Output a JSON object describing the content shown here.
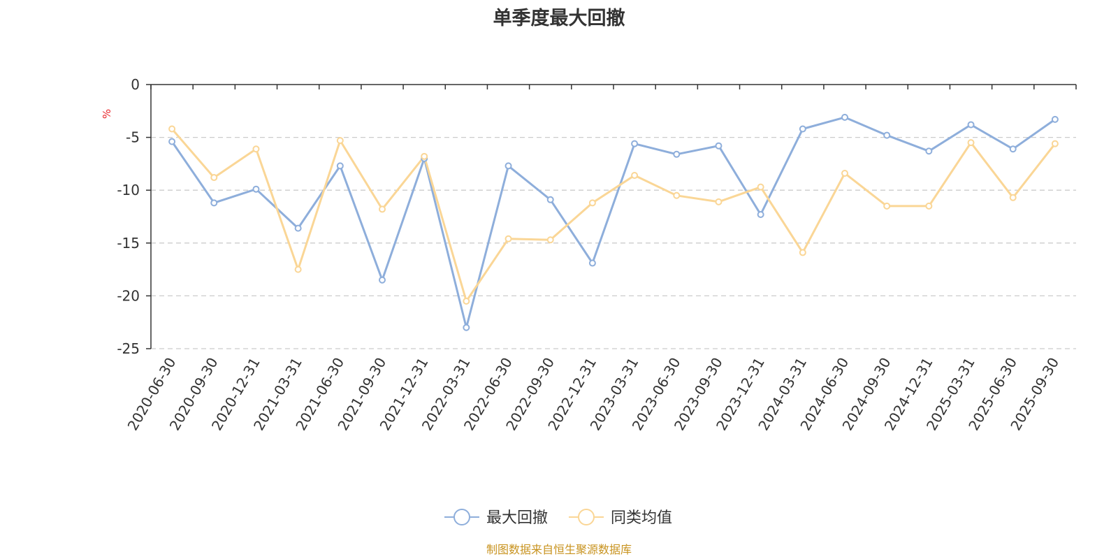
{
  "chart_data": {
    "type": "line",
    "title": "单季度最大回撤",
    "ylabel": "%",
    "xlabel": "",
    "ylim": [
      -25,
      0
    ],
    "yticks": [
      0,
      -5,
      -10,
      -15,
      -20,
      -25
    ],
    "grid": true,
    "legend_position": "bottom",
    "categories": [
      "2020-06-30",
      "2020-09-30",
      "2020-12-31",
      "2021-03-31",
      "2021-06-30",
      "2021-09-30",
      "2021-12-31",
      "2022-03-31",
      "2022-06-30",
      "2022-09-30",
      "2022-12-31",
      "2023-03-31",
      "2023-06-30",
      "2023-09-30",
      "2023-12-31",
      "2024-03-31",
      "2024-06-30",
      "2024-09-30",
      "2024-12-31",
      "2025-03-31",
      "2025-06-30",
      "2025-09-30"
    ],
    "series": [
      {
        "name": "最大回撤",
        "color": "#8eaedb",
        "values": [
          -5.4,
          -11.2,
          -9.9,
          -13.6,
          -7.7,
          -18.5,
          -7.0,
          -23.0,
          -7.7,
          -10.9,
          -16.9,
          -5.6,
          -6.6,
          -5.8,
          -12.3,
          -4.2,
          -3.1,
          -4.8,
          -6.3,
          -3.8,
          -6.1,
          -3.3
        ]
      },
      {
        "name": "同类均值",
        "color": "#fad696",
        "values": [
          -4.2,
          -8.8,
          -6.1,
          -17.5,
          -5.3,
          -11.8,
          -6.8,
          -20.5,
          -14.6,
          -14.7,
          -11.2,
          -8.6,
          -10.5,
          -11.1,
          -9.7,
          -15.9,
          -8.4,
          -11.5,
          -11.5,
          -5.5,
          -10.7,
          -5.6
        ]
      }
    ]
  },
  "source_note": "制图数据来自恒生聚源数据库"
}
